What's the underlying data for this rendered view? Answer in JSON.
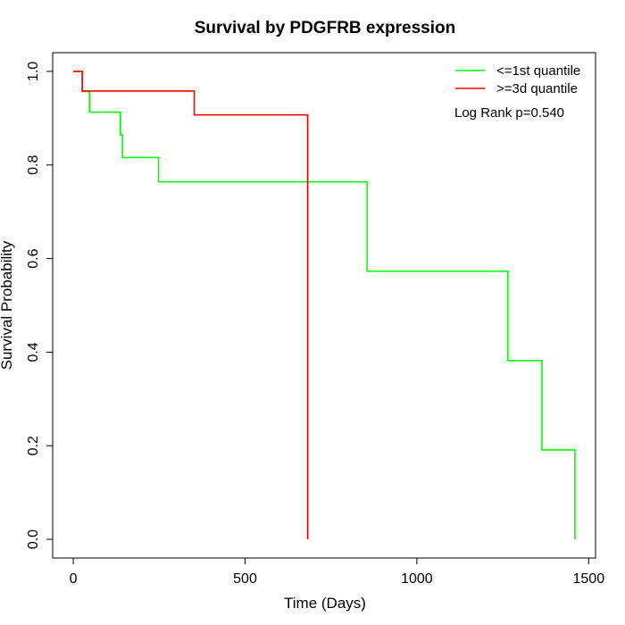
{
  "chart_data": {
    "type": "line",
    "title": "Survival by PDGFRB expression",
    "xlabel": "Time (Days)",
    "ylabel": "Survival Probability",
    "xlim": [
      -60,
      1520
    ],
    "ylim": [
      -0.04,
      1.04
    ],
    "xticks": [
      0,
      500,
      1000,
      1500
    ],
    "yticks": [
      0.0,
      0.2,
      0.4,
      0.6,
      0.8,
      1.0
    ],
    "xtick_labels": [
      "0",
      "500",
      "1000",
      "1500"
    ],
    "ytick_labels": [
      "0.0",
      "0.2",
      "0.4",
      "0.6",
      "0.8",
      "1.0"
    ],
    "grid": false,
    "legend_position": "top-right",
    "annotation": "Log Rank p=0.540",
    "series": [
      {
        "name": "<=1st quantile",
        "color": "#00ff00",
        "step": true,
        "x": [
          0,
          26,
          47,
          137,
          143,
          248,
          855,
          1265,
          1364,
          1460,
          1460
        ],
        "y": [
          1.0,
          0.957,
          0.913,
          0.865,
          0.816,
          0.764,
          0.573,
          0.382,
          0.191,
          0.191,
          0.0
        ]
      },
      {
        "name": ">=3d quantile",
        "color": "#ff0000",
        "step": true,
        "x": [
          0,
          26,
          352,
          682,
          682
        ],
        "y": [
          1.0,
          0.958,
          0.907,
          0.907,
          0.0
        ]
      }
    ]
  }
}
